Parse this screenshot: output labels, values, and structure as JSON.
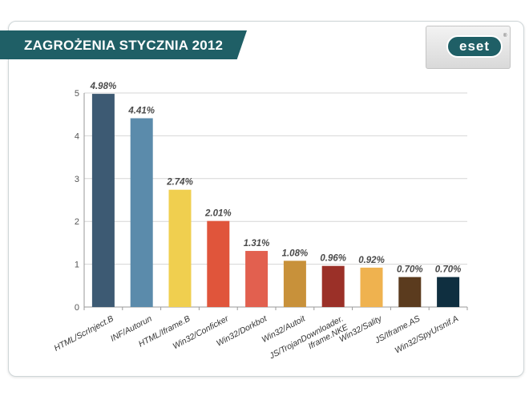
{
  "title": "ZAGROŻENIA STYCZNIA 2012",
  "logo": {
    "text": "ESET",
    "display": "eset",
    "trademark": "®",
    "color": "#1f5f66"
  },
  "chart_data": {
    "type": "bar",
    "title": "ZAGROŻENIA STYCZNIA 2012",
    "categories": [
      "HTML/ScrInject.B",
      "INF/Autorun",
      "HTML/Iframe.B",
      "Win32/Conficker",
      "Win32/Dorkbot",
      "Win32/Autoit",
      "JS/TrojanDownloader.\nIframe.NKE",
      "Win32/Sality",
      "JS/Iframe.AS",
      "Win32/SpyUrsnif.A"
    ],
    "values": [
      4.98,
      4.41,
      2.74,
      2.01,
      1.31,
      1.08,
      0.96,
      0.92,
      0.7,
      0.7
    ],
    "data_labels": [
      "4.98%",
      "4.41%",
      "2.74%",
      "2.01%",
      "1.31%",
      "1.08%",
      "0.96%",
      "0.92%",
      "0.70%",
      "0.70%"
    ],
    "colors": [
      "#3d5a73",
      "#5b8bab",
      "#f0cf4f",
      "#e0553b",
      "#e2604f",
      "#c8913a",
      "#9b3028",
      "#efb24f",
      "#5b3b1e",
      "#0f2f40"
    ],
    "ylim": [
      0,
      5
    ],
    "yticks": [
      0,
      1,
      2,
      3,
      4,
      5
    ],
    "grid": true,
    "xlabel": "",
    "ylabel": ""
  }
}
